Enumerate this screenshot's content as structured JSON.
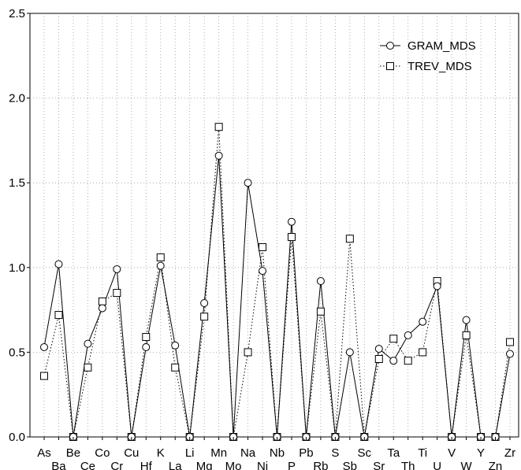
{
  "chart_data": {
    "type": "line",
    "title": "",
    "xlabel": "",
    "ylabel": "",
    "ylim": [
      0,
      2.5
    ],
    "yticks": [
      "0.0",
      "0.5",
      "1.0",
      "1.5",
      "2.0",
      "2.5"
    ],
    "grid": true,
    "legend_position": "top-right",
    "categories": [
      "As",
      "Ba",
      "Be",
      "Ce",
      "Co",
      "Cr",
      "Cu",
      "Hf",
      "K",
      "La",
      "Li",
      "Mg",
      "Mn",
      "Mo",
      "Na",
      "Ni",
      "Nb",
      "P",
      "Pb",
      "Rb",
      "S",
      "Sb",
      "Sc",
      "Sr",
      "Ta",
      "Th",
      "Ti",
      "U",
      "V",
      "W",
      "Y",
      "Zn",
      "Zr"
    ],
    "series": [
      {
        "name": "GRAM_MDS",
        "marker": "circle",
        "line": "solid",
        "values": [
          0.53,
          1.02,
          0.0,
          0.55,
          0.76,
          0.99,
          0.0,
          0.53,
          1.01,
          0.54,
          0.0,
          0.79,
          1.66,
          0.0,
          1.5,
          0.98,
          0.0,
          1.27,
          0.0,
          0.92,
          0.0,
          0.5,
          0.0,
          0.52,
          0.45,
          0.6,
          0.68,
          0.89,
          0.0,
          0.69,
          0.0,
          0.0,
          0.49
        ]
      },
      {
        "name": "TREV_MDS",
        "marker": "square",
        "line": "dotted",
        "values": [
          0.36,
          0.72,
          0.0,
          0.41,
          0.8,
          0.85,
          0.0,
          0.59,
          1.06,
          0.41,
          0.0,
          0.71,
          1.83,
          0.0,
          0.5,
          1.12,
          0.0,
          1.18,
          0.0,
          0.74,
          0.0,
          1.17,
          0.0,
          0.46,
          0.58,
          0.45,
          0.5,
          0.92,
          0.0,
          0.6,
          0.0,
          0.0,
          0.56
        ]
      }
    ]
  }
}
